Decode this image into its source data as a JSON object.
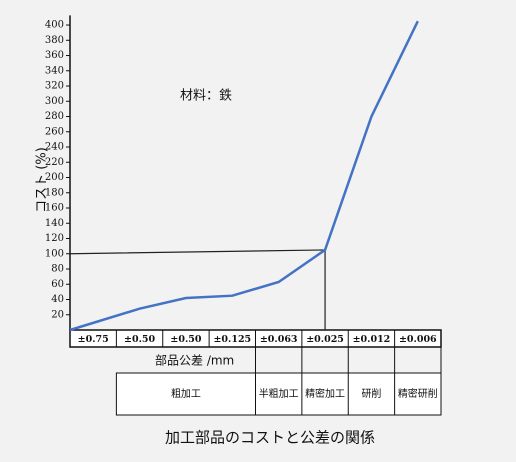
{
  "chart_data": {
    "type": "line",
    "title": "加工部品のコストと公差の関係",
    "y_label": "コスト (%)",
    "x_label": "部品公差 /mm",
    "annotation": "材料：鉄",
    "categories": [
      "±0.75",
      "±0.50",
      "±0.50",
      "±0.125",
      "±0.063",
      "±0.025",
      "±0.012",
      "±0.006"
    ],
    "values": [
      0,
      28,
      42,
      45,
      63,
      105,
      280,
      405
    ],
    "color": "#4472c4",
    "ylim": [
      0,
      410
    ],
    "yticks": [
      20,
      40,
      60,
      80,
      100,
      120,
      140,
      160,
      180,
      200,
      220,
      240,
      260,
      280,
      300,
      320,
      340,
      360,
      380,
      400
    ],
    "processes": [
      "粗加工",
      "半粗加工",
      "精密加工",
      "研削",
      "精密研削"
    ]
  }
}
